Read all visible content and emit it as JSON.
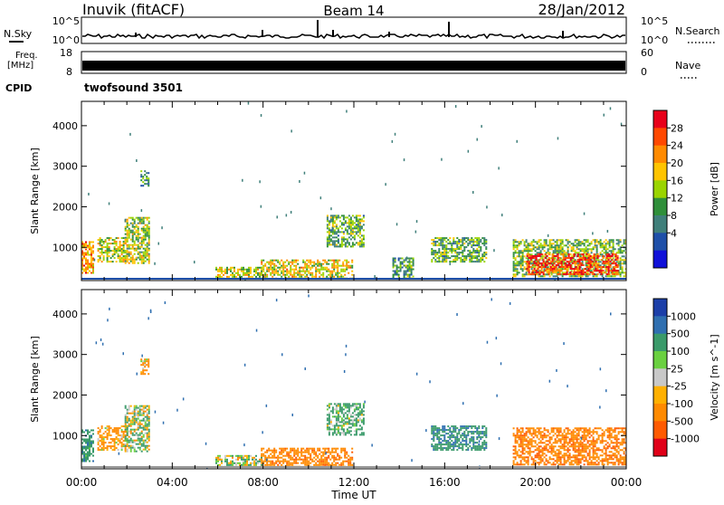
{
  "header": {
    "station": "Inuvik (fitACF)",
    "beam": "Beam 14",
    "date": "28/Jan/2012"
  },
  "noise_panel": {
    "left_label": "N.Sky",
    "right_label": "N.Search",
    "left_ticks": [
      "10^5",
      "10^0"
    ],
    "right_ticks": [
      "10^5",
      "10^0"
    ]
  },
  "freq_panel": {
    "left_label_1": "Freq.",
    "left_label_2": "[MHz]",
    "right_label": "Nave",
    "left_ticks": [
      "18",
      "8"
    ],
    "right_ticks": [
      "60",
      "0"
    ]
  },
  "cpid": {
    "label": "CPID",
    "value": "twofsound 3501"
  },
  "chart_data": [
    {
      "type": "heatmap",
      "quantity": "Power",
      "ylabel": "Slant Range [km]",
      "xlabel": "Time UT",
      "colorbar_label": "Power [dB]",
      "colorbar_ticks": [
        "28",
        "24",
        "20",
        "16",
        "12",
        "8",
        "4"
      ],
      "colorbar_colors": [
        "#e8001a",
        "#ff4800",
        "#ff8a00",
        "#ffc400",
        "#9ad400",
        "#2f8f3a",
        "#3f7f7a",
        "#1e4fa8",
        "#1010d8"
      ],
      "yticks": [
        1000,
        2000,
        3000,
        4000
      ],
      "ylim": [
        180,
        4600
      ],
      "xticks": [
        "00:00",
        "04:00",
        "08:00",
        "12:00",
        "16:00",
        "20:00",
        "00:00"
      ],
      "xlim_hours": [
        0,
        24
      ],
      "regions": [
        {
          "t0": 0.0,
          "t1": 0.55,
          "r0": 380,
          "r1": 1150,
          "level": 0.75
        },
        {
          "t0": 0.7,
          "t1": 2.0,
          "r0": 650,
          "r1": 1250,
          "level": 0.55
        },
        {
          "t0": 1.9,
          "t1": 3.0,
          "r0": 600,
          "r1": 1750,
          "level": 0.5
        },
        {
          "t0": 2.6,
          "t1": 2.95,
          "r0": 2500,
          "r1": 2900,
          "level": 0.35
        },
        {
          "t0": 5.9,
          "t1": 7.9,
          "r0": 230,
          "r1": 520,
          "level": 0.55
        },
        {
          "t0": 7.9,
          "t1": 11.9,
          "r0": 230,
          "r1": 700,
          "level": 0.6
        },
        {
          "t0": 10.8,
          "t1": 12.4,
          "r0": 1000,
          "r1": 1800,
          "level": 0.4
        },
        {
          "t0": 13.7,
          "t1": 14.6,
          "r0": 250,
          "r1": 750,
          "level": 0.35
        },
        {
          "t0": 15.4,
          "t1": 17.8,
          "r0": 650,
          "r1": 1250,
          "level": 0.4
        },
        {
          "t0": 19.0,
          "t1": 24.0,
          "r0": 300,
          "r1": 1200,
          "level": 0.45
        },
        {
          "t0": 19.6,
          "t1": 23.6,
          "r0": 350,
          "r1": 850,
          "level": 0.9
        }
      ]
    },
    {
      "type": "heatmap",
      "quantity": "Velocity",
      "ylabel": "Slant Range [km]",
      "xlabel": "Time UT",
      "colorbar_label": "Velocity [m s^-1]",
      "colorbar_ticks": [
        "1000",
        "500",
        "100",
        "25",
        "-25",
        "-100",
        "-500",
        "-1000"
      ],
      "colorbar_colors": [
        "#1c3fa8",
        "#2f6fb0",
        "#3a9a6a",
        "#6ad040",
        "#c8c8c8",
        "#ffb000",
        "#ff8a00",
        "#ff5a00",
        "#e00018"
      ],
      "yticks": [
        1000,
        2000,
        3000,
        4000
      ],
      "ylim": [
        180,
        4600
      ],
      "xticks": [
        "00:00",
        "04:00",
        "08:00",
        "12:00",
        "16:00",
        "20:00",
        "00:00"
      ],
      "xlim_hours": [
        0,
        24
      ],
      "regions": [
        {
          "t0": 0.0,
          "t1": 0.55,
          "r0": 380,
          "r1": 1150,
          "vel": 300
        },
        {
          "t0": 0.7,
          "t1": 2.0,
          "r0": 650,
          "r1": 1250,
          "vel": -200
        },
        {
          "t0": 1.9,
          "t1": 3.0,
          "r0": 600,
          "r1": 1750,
          "vel": 80
        },
        {
          "t0": 2.6,
          "t1": 2.95,
          "r0": 2500,
          "r1": 2900,
          "vel": -150
        },
        {
          "t0": 5.9,
          "t1": 7.9,
          "r0": 230,
          "r1": 520,
          "vel": 90
        },
        {
          "t0": 7.9,
          "t1": 11.9,
          "r0": 230,
          "r1": 700,
          "vel": -350
        },
        {
          "t0": 10.8,
          "t1": 12.4,
          "r0": 1000,
          "r1": 1800,
          "vel": 200
        },
        {
          "t0": 15.4,
          "t1": 17.8,
          "r0": 650,
          "r1": 1250,
          "vel": 400
        },
        {
          "t0": 19.0,
          "t1": 24.0,
          "r0": 300,
          "r1": 1200,
          "vel": -400
        }
      ]
    }
  ]
}
